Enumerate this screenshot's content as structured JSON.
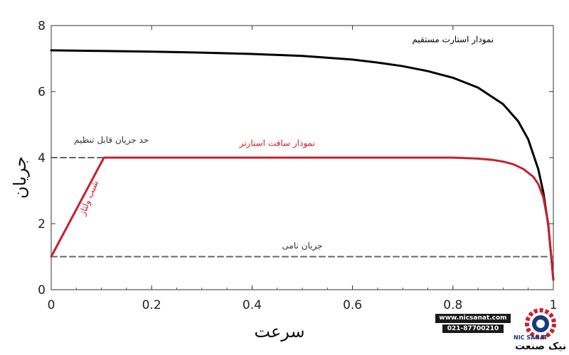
{
  "chart_data": {
    "type": "line",
    "xlabel": "سرعت",
    "ylabel": "جریان",
    "xlim": [
      0,
      1
    ],
    "ylim": [
      0,
      8
    ],
    "xticks": [
      "0",
      "0.2",
      "0.4",
      "0.6",
      "0.8",
      "1"
    ],
    "yticks": [
      "0",
      "2",
      "4",
      "6",
      "8"
    ],
    "grid": false,
    "series": [
      {
        "name": "نمودار استارت مستقیم",
        "color": "#000000",
        "x": [
          0,
          0.1,
          0.2,
          0.3,
          0.4,
          0.5,
          0.6,
          0.65,
          0.7,
          0.75,
          0.8,
          0.85,
          0.9,
          0.93,
          0.95,
          0.97,
          0.98,
          0.99,
          1.0
        ],
        "y": [
          7.25,
          7.23,
          7.21,
          7.18,
          7.14,
          7.08,
          6.97,
          6.88,
          6.77,
          6.62,
          6.42,
          6.12,
          5.62,
          5.1,
          4.55,
          3.65,
          2.95,
          1.95,
          0.3
        ]
      },
      {
        "name": "نمودار سافت استارتر",
        "color": "#c8202f",
        "x": [
          0,
          0.105,
          0.2,
          0.4,
          0.6,
          0.8,
          0.85,
          0.88,
          0.9,
          0.92,
          0.94,
          0.96,
          0.97,
          0.98,
          0.99,
          1.0
        ],
        "y": [
          1.0,
          4.0,
          4.0,
          4.0,
          4.0,
          4.0,
          3.97,
          3.93,
          3.88,
          3.8,
          3.66,
          3.42,
          3.2,
          2.8,
          2.0,
          0.3
        ]
      },
      {
        "name": "جریان نامی",
        "color": "#666666",
        "dashed": true,
        "x": [
          0,
          1
        ],
        "y": [
          1.0,
          1.0
        ]
      },
      {
        "name": "حد جریان قابل تنظیم",
        "color": "#666666",
        "dashed": true,
        "x": [
          0,
          0.105
        ],
        "y": [
          4.0,
          4.0
        ]
      }
    ],
    "annotations": [
      {
        "text": "نمودار استارت مستقیم",
        "x": 0.8,
        "y": 7.5,
        "color": "#000000"
      },
      {
        "text": "نمودار سافت استارتر",
        "x": 0.45,
        "y": 4.35,
        "color": "#c8202f"
      },
      {
        "text": "حد جریان قابل تنظیم",
        "x": 0.12,
        "y": 4.45,
        "color": "#333333"
      },
      {
        "text": "شیب ولتاژ",
        "x": 0.08,
        "y": 2.75,
        "color": "#c8202f",
        "rotate": true
      },
      {
        "text": "جریان نامی",
        "x": 0.5,
        "y": 1.25,
        "color": "#333333"
      }
    ]
  },
  "logo": {
    "website": "www.nicsanat.com",
    "phone": "021-87700210",
    "brand_fa": "نیک صنعت",
    "brand_en": "NIC SANAT"
  }
}
